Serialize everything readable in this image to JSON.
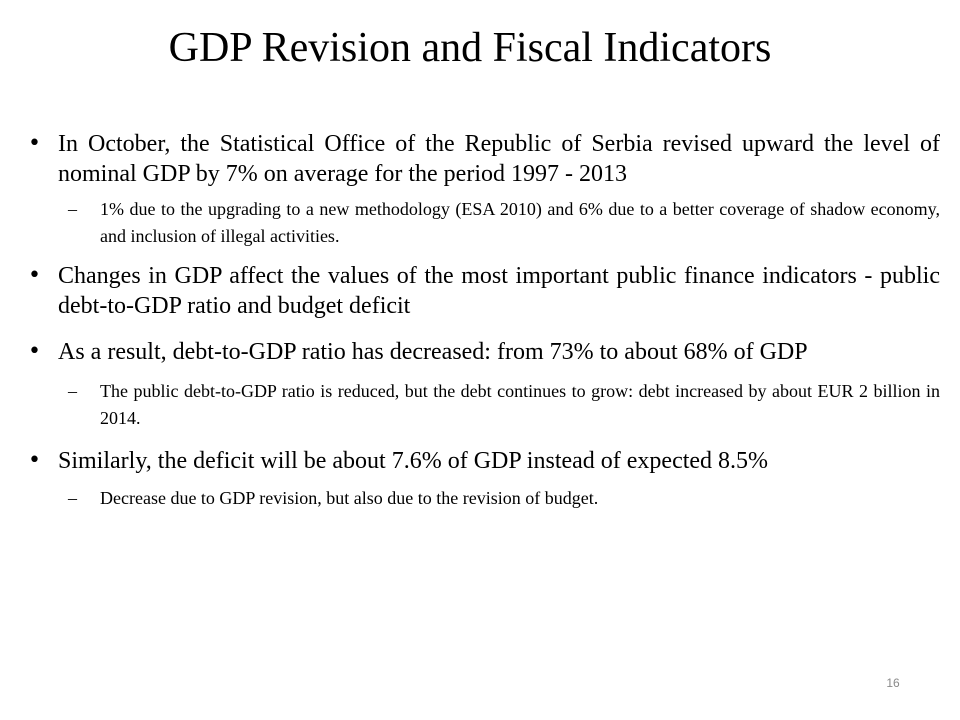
{
  "slide": {
    "title": "GDP Revision and Fiscal Indicators",
    "bullets": [
      {
        "text": "In October, the Statistical Office of the Republic of Serbia revised upward the level of nominal GDP by 7% on average for the period 1997 - 2013",
        "sub": "1% due to the upgrading to a new methodology (ESA 2010) and 6% due to a better coverage of shadow economy, and inclusion of illegal activities."
      },
      {
        "text": " Changes in GDP affect the values of the most important public finance indicators - public debt-to-GDP ratio and budget deficit"
      },
      {
        "text": " As a result, debt-to-GDP ratio has decreased: from 73% to about 68% of GDP",
        "sub": "The public debt-to-GDP ratio is reduced, but the debt continues to grow: debt increased by about EUR 2 billion in 2014."
      },
      {
        "text": " Similarly, the deficit will be about 7.6% of GDP instead of expected 8.5%",
        "sub": "Decrease due to GDP revision, but also due to the revision of budget."
      }
    ],
    "bullet_glyph": "•",
    "dash_glyph": "–",
    "page_number": "16"
  }
}
